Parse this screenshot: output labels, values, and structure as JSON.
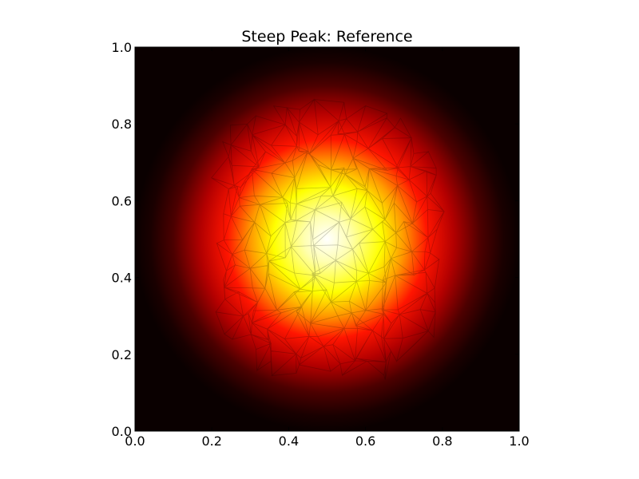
{
  "chart_data": {
    "type": "heatmap",
    "title": "Steep Peak: Reference",
    "xlabel": "",
    "ylabel": "",
    "xlim": [
      0.0,
      1.0
    ],
    "ylim": [
      0.0,
      1.0
    ],
    "x_ticks": [
      "0.0",
      "0.2",
      "0.4",
      "0.6",
      "0.8",
      "1.0"
    ],
    "y_ticks": [
      "0.0",
      "0.2",
      "0.4",
      "0.6",
      "0.8",
      "1.0"
    ],
    "x_tick_values": [
      0.0,
      0.2,
      0.4,
      0.6,
      0.8,
      1.0
    ],
    "y_tick_values": [
      0.0,
      0.2,
      0.4,
      0.6,
      0.8,
      1.0
    ],
    "peak_center": [
      0.5,
      0.5
    ],
    "colormap": "hot",
    "mesh_overlay": "triangulation",
    "grid": false
  },
  "colors": {
    "background": "#ffffff",
    "mesh": "#000000",
    "text": "#000000"
  }
}
